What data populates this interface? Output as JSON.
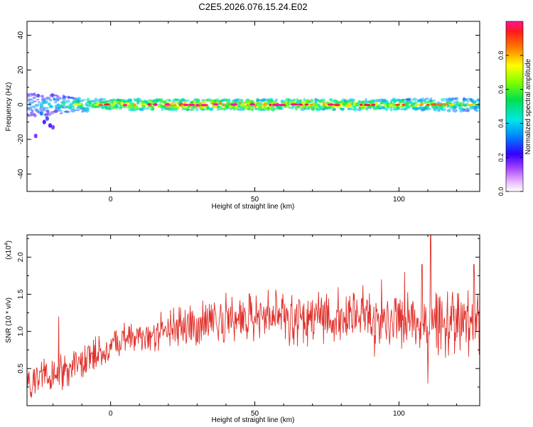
{
  "figure": {
    "title": "C2E5.2026.076.15.24.E02"
  },
  "colors": {
    "snr_line": "#e0302a",
    "ridge": "#e03a3a",
    "axis": "#000000"
  },
  "chart_data": [
    {
      "type": "heatmap",
      "panel": "spectrogram",
      "xlabel": "Height of straight line (km)",
      "ylabel": "Frequency (Hz)",
      "xlim": [
        -29,
        128
      ],
      "ylim": [
        -50,
        48
      ],
      "xticks": [
        0,
        50,
        100
      ],
      "xtick_labels": [
        "0",
        "50",
        "100"
      ],
      "yticks": [
        -40,
        -20,
        0,
        20,
        40
      ],
      "ytick_labels": [
        "-40",
        "-20",
        "0",
        "20",
        "40"
      ],
      "ridge_frequency_hz": 0,
      "ridge_halfwidth_hz": 4,
      "ridge_profile": [
        {
          "x": -29,
          "amp": 0.4,
          "spread_hz": 7
        },
        {
          "x": -20,
          "amp": 0.45,
          "spread_hz": 6
        },
        {
          "x": -12,
          "amp": 0.55,
          "spread_hz": 4
        },
        {
          "x": 0,
          "amp": 0.75,
          "spread_hz": 3
        },
        {
          "x": 30,
          "amp": 0.85,
          "spread_hz": 3
        },
        {
          "x": 60,
          "amp": 0.8,
          "spread_hz": 3
        },
        {
          "x": 100,
          "amp": 0.7,
          "spread_hz": 3
        },
        {
          "x": 128,
          "amp": 0.55,
          "spread_hz": 4
        }
      ],
      "scattered_points": [
        {
          "x": -23,
          "y": -10,
          "amp": 0.2
        },
        {
          "x": -21,
          "y": -12,
          "amp": 0.2
        },
        {
          "x": -20,
          "y": -13,
          "amp": 0.15
        },
        {
          "x": -22,
          "y": -8,
          "amp": 0.25
        },
        {
          "x": -26,
          "y": -18,
          "amp": 0.15
        },
        {
          "x": -24,
          "y": -5,
          "amp": 0.3
        }
      ],
      "colorbar": {
        "label": "Normalized spectral amplitude",
        "range": [
          0.0,
          1.0
        ],
        "ticks": [
          0.0,
          0.2,
          0.4,
          0.6,
          0.8
        ],
        "tick_labels": [
          "0.0",
          "0.2",
          "0.4",
          "0.6",
          "0.8"
        ]
      }
    },
    {
      "type": "line",
      "panel": "snr",
      "xlabel": "Height of straight line (km)",
      "ylabel": "SNR (10 * v/v)",
      "y_multiplier_label": "(x10",
      "y_multiplier_exp": "4",
      "y_multiplier_close": ")",
      "xlim": [
        -29,
        128
      ],
      "ylim": [
        0.0,
        2.3
      ],
      "xticks": [
        0,
        50,
        100
      ],
      "xtick_labels": [
        "0",
        "50",
        "100"
      ],
      "yticks": [
        0.5,
        1.0,
        1.5,
        2.0
      ],
      "ytick_labels": [
        "0.5",
        "1.0",
        "1.5",
        "2.0"
      ],
      "series": [
        {
          "trend": [
            {
              "x": -29,
              "y": 0.32
            },
            {
              "x": -15,
              "y": 0.48
            },
            {
              "x": -5,
              "y": 0.72
            },
            {
              "x": 5,
              "y": 0.88
            },
            {
              "x": 15,
              "y": 0.98
            },
            {
              "x": 25,
              "y": 1.08
            },
            {
              "x": 40,
              "y": 1.18
            },
            {
              "x": 55,
              "y": 1.22
            },
            {
              "x": 70,
              "y": 1.2
            },
            {
              "x": 85,
              "y": 1.16
            },
            {
              "x": 100,
              "y": 1.12
            },
            {
              "x": 115,
              "y": 1.12
            },
            {
              "x": 128,
              "y": 1.15
            }
          ],
          "noise_profile": [
            {
              "x": -29,
              "amp": 0.22
            },
            {
              "x": 0,
              "amp": 0.18
            },
            {
              "x": 40,
              "amp": 0.25
            },
            {
              "x": 80,
              "amp": 0.32
            },
            {
              "x": 128,
              "amp": 0.38
            }
          ],
          "spikes": [
            {
              "x": -18,
              "y": 1.2
            },
            {
              "x": 111,
              "y": 2.3
            },
            {
              "x": 108,
              "y": 1.9
            },
            {
              "x": 126,
              "y": 1.9
            },
            {
              "x": 110,
              "y": 0.3
            },
            {
              "x": 94,
              "y": 1.7
            },
            {
              "x": 102,
              "y": 1.8
            }
          ],
          "n_samples": 900
        }
      ]
    }
  ]
}
